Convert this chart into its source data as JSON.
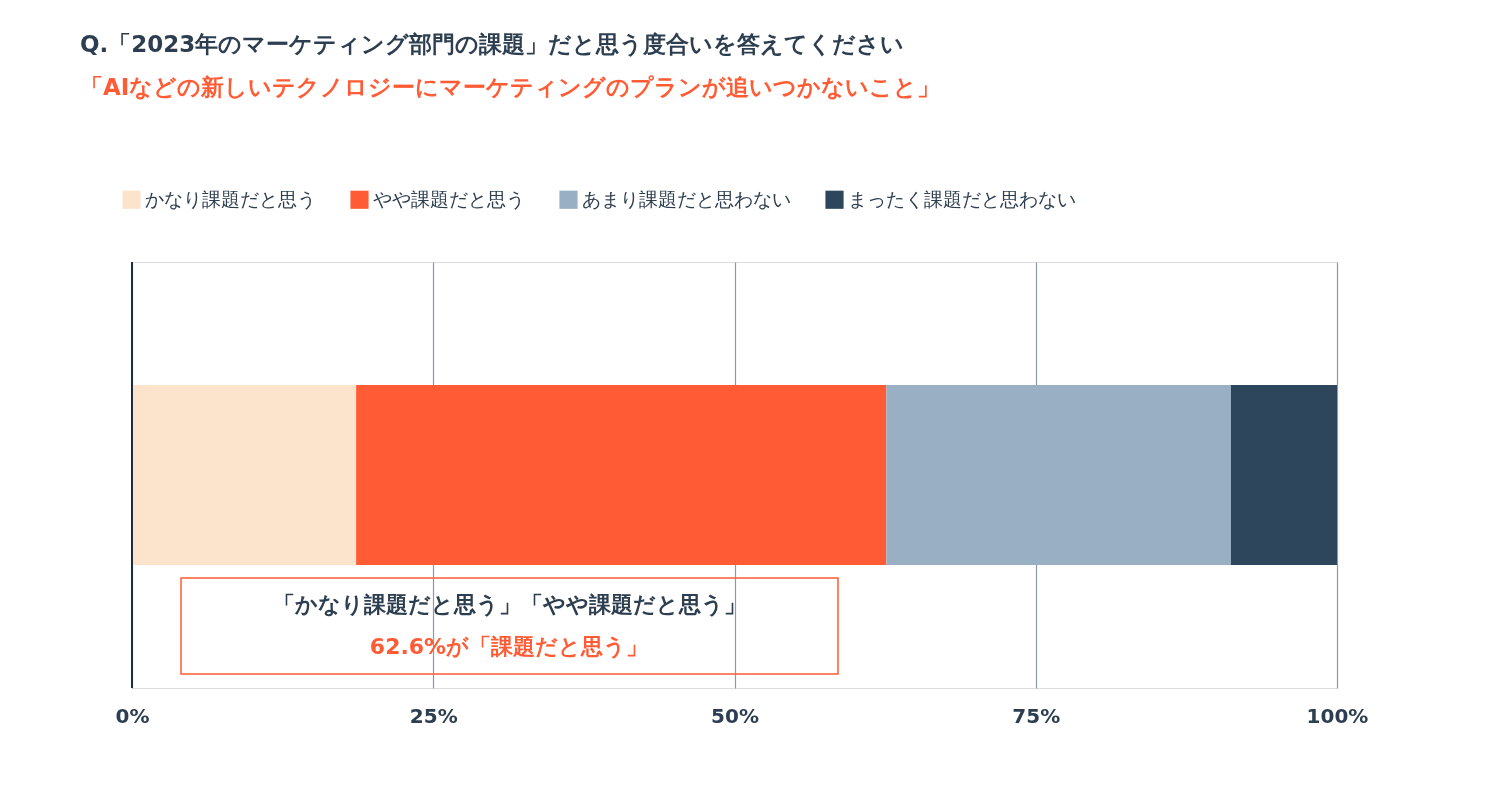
{
  "chart_data": {
    "type": "bar",
    "orientation": "horizontal",
    "stacked": true,
    "title": "Q.「2023年のマーケティング部門の課題」だと思う度合いを答えてください",
    "subtitle": "「AIなどの新しいテクノロジーにマーケティングのプランが追いつかないこと」",
    "categories": [
      null
    ],
    "series": [
      {
        "name": "かなり課題だと思う",
        "color": "#fce3cc",
        "values": [
          18.6
        ]
      },
      {
        "name": "やや課題だと思う",
        "color": "#ff5c35",
        "values": [
          44.0
        ]
      },
      {
        "name": "あまり課題だと思わない",
        "color": "#99afc4",
        "values": [
          28.6
        ]
      },
      {
        "name": "まったく課題だと思わない",
        "color": "#2d465b",
        "values": [
          8.8
        ]
      }
    ],
    "xlim": [
      0,
      100
    ],
    "xticks": [
      {
        "value": 0,
        "label": "0%"
      },
      {
        "value": 25,
        "label": "25%"
      },
      {
        "value": 50,
        "label": "50%"
      },
      {
        "value": 75,
        "label": "75%"
      },
      {
        "value": 100,
        "label": "100%"
      }
    ],
    "grid": "x",
    "legend": "top left",
    "annotations": [
      "「かなり課題だと思う」「やや課題だと思う」",
      "62.6%が「課題だと思う」"
    ]
  }
}
